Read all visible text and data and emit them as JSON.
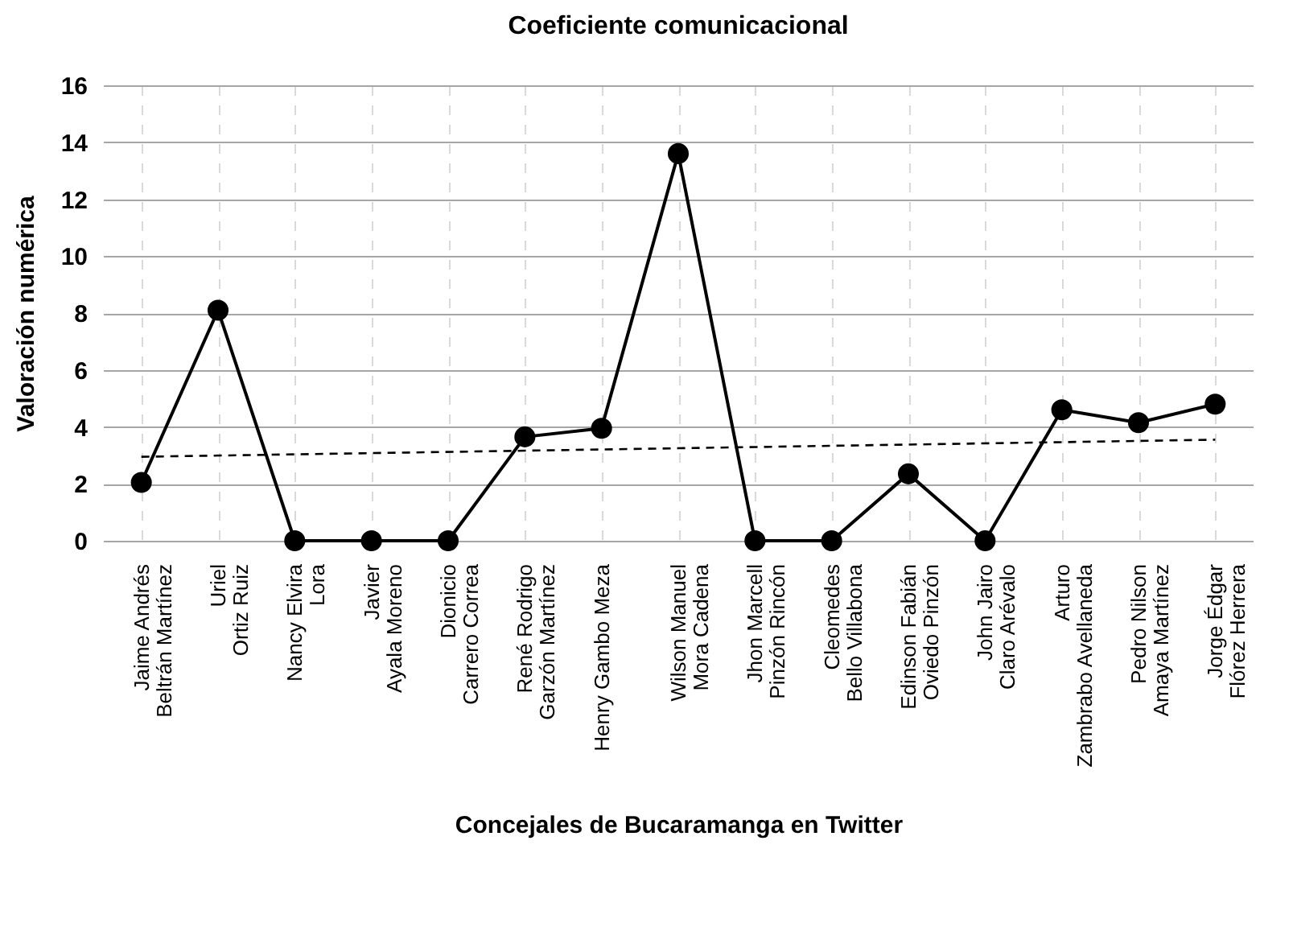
{
  "chart_data": {
    "type": "line",
    "title": "Coeficiente comunicacional",
    "xlabel": "Concejales de Bucaramanga en Twitter",
    "ylabel": "Valoración numérica",
    "categories": [
      "Jaime Andrés\nBeltrán Martínez",
      "Uriel\nOrtiz Ruiz",
      "Nancy Elvira\nLora",
      "Javier\nAyala Moreno",
      "Dionicio\nCarrero Correa",
      "René Rodrigo\nGarzón Martínez",
      "Henry Gambo Meza",
      "Wilson Manuel\nMora Cadena",
      "Jhon Marcell\nPinzón Rincón",
      "Cleomedes\nBello Villabona",
      "Edinson Fabián\nOviedo Pinzón",
      "John Jairo\nClaro Arévalo",
      "Arturo\nZambrabo Avellaneda",
      "Pedro Nilson\nAmaya Martínez",
      "Jorge Édgar\nFlórez Herrera"
    ],
    "series": [
      {
        "color": "#000000",
        "values": [
          2.05,
          8.1,
          0,
          0,
          0,
          3.65,
          3.95,
          13.6,
          0,
          0,
          2.35,
          0,
          4.6,
          4.15,
          4.8
        ]
      },
      {
        "color": "#000000",
        "x": [
          "Jaime Andrés\nBeltrán Martínez",
          "Jorge Édgar\nFlórez Herrera"
        ],
        "values": [
          2.95,
          3.55
        ],
        "marker": "none",
        "line_style": "dashed"
      }
    ],
    "ylim": [
      0,
      16
    ],
    "yticks": [
      0,
      2,
      4,
      6,
      8,
      10,
      12,
      14,
      16
    ],
    "grid": true,
    "marker": "circle",
    "line_style": "solid"
  }
}
